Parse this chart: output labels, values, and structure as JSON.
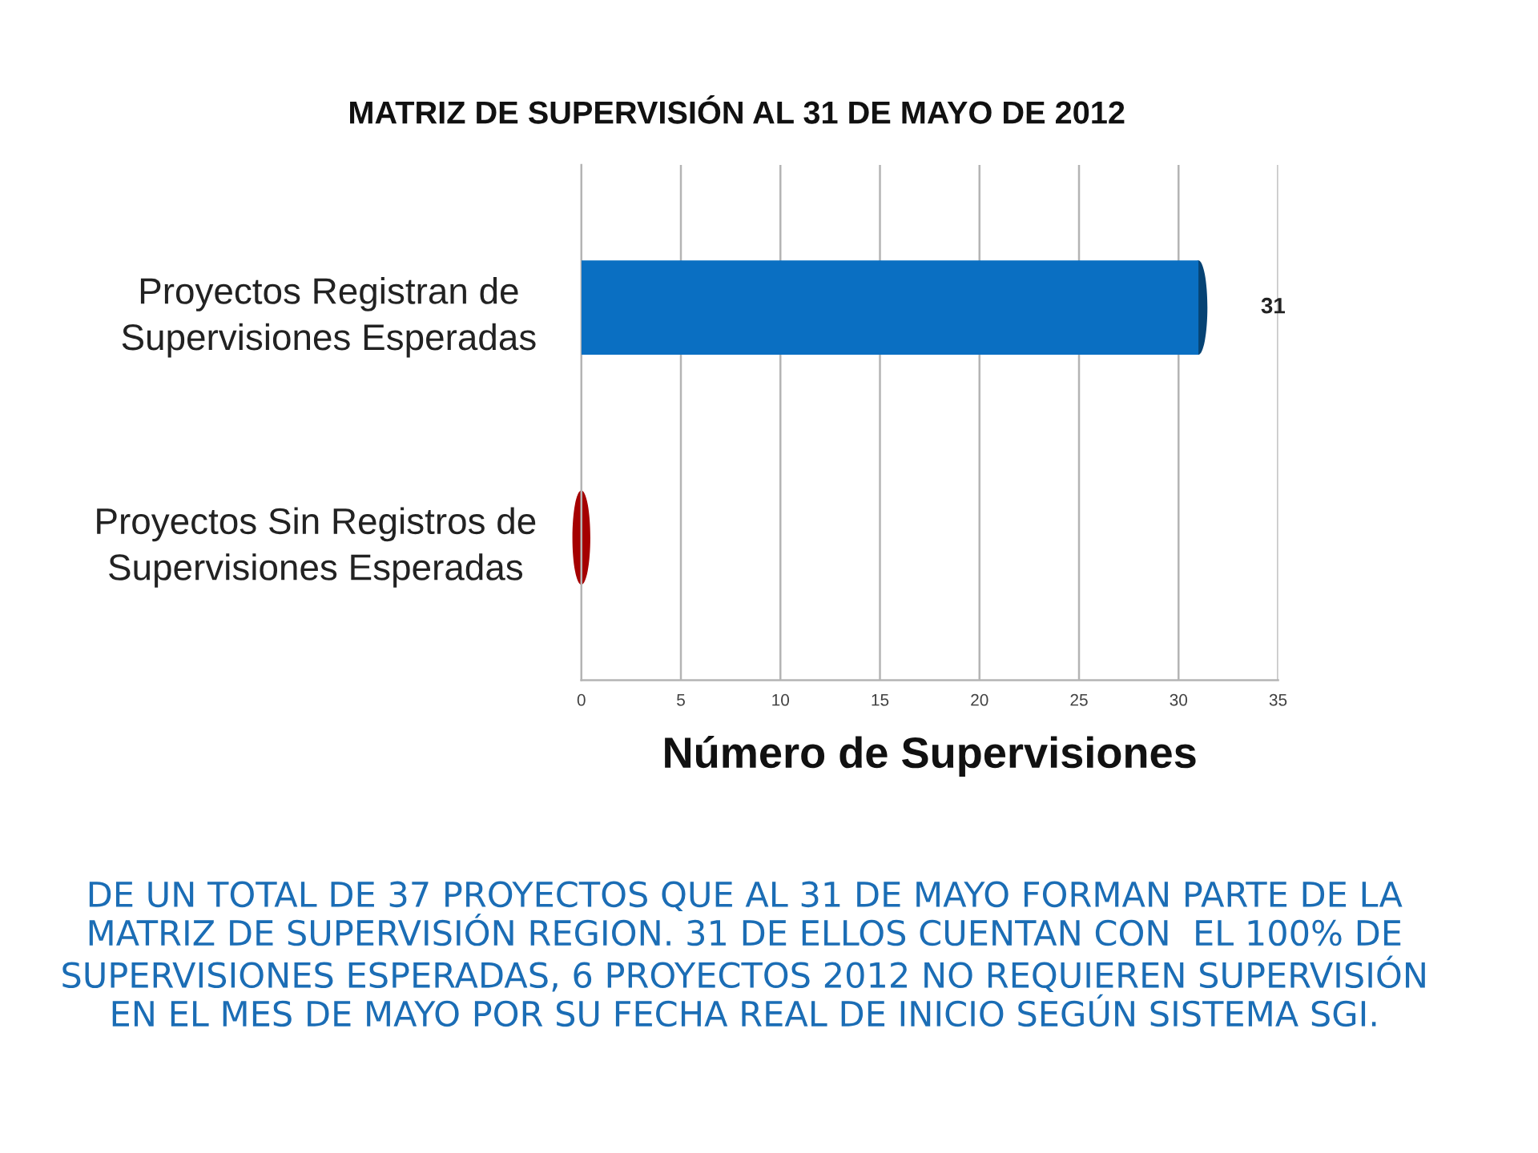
{
  "chart_data": {
    "type": "bar",
    "orientation": "horizontal",
    "title": "MATRIZ DE SUPERVISIÓN AL 31 DE MAYO DE 2012",
    "categories": [
      "Proyectos Registran de\nSupervisiones Esperadas",
      "Proyectos Sin Registros de\nSupervisiones Esperadas"
    ],
    "values": [
      31,
      0
    ],
    "colors": [
      "#0a6fc2",
      "#a50000"
    ],
    "value_labels": [
      "31",
      null
    ],
    "xlabel": "Número de Supervisiones",
    "xlim": [
      0,
      35
    ],
    "xticks": [
      0,
      5,
      10,
      15,
      20,
      25,
      30,
      35
    ],
    "grid": "x",
    "annotations": [
      "DE UN TOTAL DE 37 PROYECTOS QUE AL 31 DE MAYO FORMAN PARTE DE LA\nMATRIZ DE SUPERVISIÓN REGION. 31 DE ELLOS CUENTAN CON  EL 100% DE\nSUPERVISIONES ESPERADAS, 6 PROYECTOS 2012 NO REQUIEREN SUPERVISIÓN\nEN EL MES DE MAYO POR SU FECHA REAL DE INICIO SEGÚN SISTEMA SGI."
    ]
  }
}
